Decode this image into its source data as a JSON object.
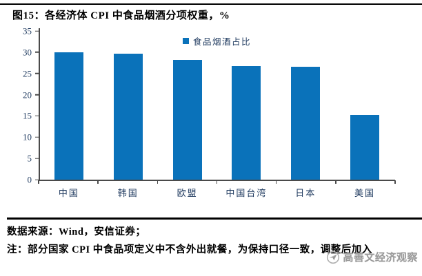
{
  "header": {
    "title": "图15：各经济体 CPI 中食品烟酒分项权重，%"
  },
  "chart_data": {
    "type": "bar",
    "title": "各经济体 CPI 中食品烟酒分项权重，%",
    "categories": [
      "中国",
      "韩国",
      "欧盟",
      "中国台湾",
      "日本",
      "美国"
    ],
    "series": [
      {
        "name": "食品烟酒占比",
        "values": [
          30.0,
          29.7,
          28.2,
          26.8,
          26.5,
          15.2
        ]
      }
    ],
    "xlabel": "",
    "ylabel": "",
    "ylim": [
      0,
      35
    ],
    "yticks": [
      0,
      5,
      10,
      15,
      20,
      25,
      30,
      35
    ],
    "grid": false,
    "legend_position": "top-center",
    "bar_color": "#0a72ba"
  },
  "legend": {
    "label": "食品烟酒占比"
  },
  "footer": {
    "source": "数据来源：Wind，安信证券；",
    "note": "注：部分国家 CPI 中食品项定义中不含外出就餐，为保持口径一致，调整后加入"
  },
  "watermark": {
    "text": "高善文经济观察",
    "icon": "paper-plane-circle-icon"
  },
  "colors": {
    "bar": "#0a72ba",
    "axis_label": "#1f3a5f",
    "axis_line": "#4a4a4a",
    "divider": "#000000",
    "watermark_text": "#9a9a9a"
  }
}
